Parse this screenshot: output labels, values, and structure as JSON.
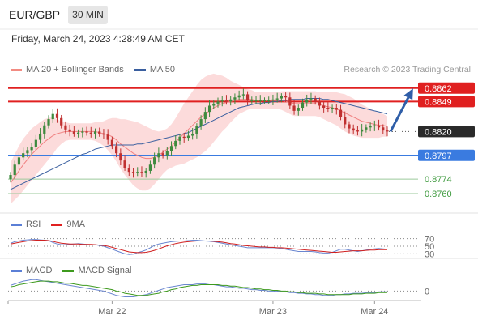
{
  "header": {
    "pair": "EUR/GBP",
    "timeframe": "30 MIN"
  },
  "date": "Friday, March 24, 2023 4:28:49 AM CET",
  "credit": "Research © 2023 Trading Central",
  "colors": {
    "resistance": "#e02020",
    "support_blue": "#3a7be0",
    "support_green": "#3e9a3e",
    "current": "#2a2a2a",
    "ma20": "#f08080",
    "ma50": "#3a5f9f",
    "band": "#fbd5d5",
    "candle_up": "#3e8a3e",
    "candle_down": "#c03030",
    "rsi": "#6a86d0",
    "rsi_ma": "#d02020",
    "macd": "#6a86d0",
    "macd_signal": "#3e9a1e"
  },
  "legends": {
    "main": [
      {
        "label": "MA 20 + Bollinger Bands",
        "color": "#f28b82"
      },
      {
        "label": "MA 50",
        "color": "#3a5f9f"
      }
    ],
    "rsi": [
      {
        "label": "RSI",
        "color": "#5b7fd6"
      },
      {
        "label": "9MA",
        "color": "#e02020"
      }
    ],
    "macd": [
      {
        "label": "MACD",
        "color": "#5b7fd6"
      },
      {
        "label": "MACD Signal",
        "color": "#3e9a1e"
      }
    ]
  },
  "chart_data": {
    "type": "candlestick",
    "ylim": [
      0.8742,
      0.8872
    ],
    "x_ticks": [
      "Mar 22",
      "Mar 23",
      "Mar 24"
    ],
    "levels": [
      {
        "value": 0.8862,
        "label": "0.8862",
        "kind": "resistance"
      },
      {
        "value": 0.8849,
        "label": "0.8849",
        "kind": "resistance"
      },
      {
        "value": 0.882,
        "label": "0.8820",
        "kind": "current"
      },
      {
        "value": 0.8797,
        "label": "0.8797",
        "kind": "support"
      },
      {
        "value": 0.8774,
        "label": "0.8774",
        "kind": "support_minor"
      },
      {
        "value": 0.876,
        "label": "0.8760",
        "kind": "support_minor"
      }
    ],
    "close": [
      0.8778,
      0.8788,
      0.8795,
      0.8799,
      0.8802,
      0.8805,
      0.8812,
      0.8818,
      0.8826,
      0.8832,
      0.8837,
      0.8833,
      0.8826,
      0.8822,
      0.882,
      0.8818,
      0.8819,
      0.882,
      0.8819,
      0.8818,
      0.882,
      0.8818,
      0.8817,
      0.8812,
      0.8806,
      0.8799,
      0.8792,
      0.8785,
      0.8781,
      0.878,
      0.8781,
      0.878,
      0.8782,
      0.8788,
      0.8795,
      0.8799,
      0.8797,
      0.8801,
      0.8806,
      0.8811,
      0.8815,
      0.8814,
      0.8816,
      0.8818,
      0.8825,
      0.8832,
      0.8839,
      0.8845,
      0.8847,
      0.8849,
      0.885,
      0.8849,
      0.8851,
      0.8853,
      0.8855,
      0.8856,
      0.885,
      0.885,
      0.885,
      0.885,
      0.885,
      0.885,
      0.8851,
      0.8852,
      0.8854,
      0.8853,
      0.8845,
      0.884,
      0.8843,
      0.8848,
      0.8851,
      0.8852,
      0.8849,
      0.8845,
      0.8843,
      0.8842,
      0.8843,
      0.8841,
      0.8834,
      0.8827,
      0.8823,
      0.8821,
      0.882,
      0.8822,
      0.8824,
      0.8825,
      0.8826,
      0.8824,
      0.8821,
      0.882
    ],
    "ma20": [
      0.877,
      0.8776,
      0.8782,
      0.8788,
      0.8793,
      0.8798,
      0.8802,
      0.8806,
      0.881,
      0.8813,
      0.8816,
      0.8818,
      0.8819,
      0.882,
      0.882,
      0.882,
      0.882,
      0.882,
      0.882,
      0.882,
      0.882,
      0.8819,
      0.8818,
      0.8817,
      0.8815,
      0.8812,
      0.8808,
      0.8805,
      0.8802,
      0.8799,
      0.8797,
      0.8795,
      0.8794,
      0.8794,
      0.8795,
      0.8797,
      0.88,
      0.8803,
      0.8806,
      0.881,
      0.8814,
      0.8818,
      0.8822,
      0.8826,
      0.883,
      0.8834,
      0.8837,
      0.884,
      0.8843,
      0.8845,
      0.8847,
      0.8848,
      0.8849,
      0.885,
      0.8851,
      0.8851,
      0.8851,
      0.8851,
      0.885,
      0.885,
      0.885,
      0.885,
      0.885,
      0.885,
      0.885,
      0.8849,
      0.8848,
      0.8847,
      0.8847,
      0.8847,
      0.8847,
      0.8847,
      0.8847,
      0.8846,
      0.8845,
      0.8844,
      0.8843,
      0.8842,
      0.884,
      0.8838,
      0.8836,
      0.8834,
      0.8832,
      0.883,
      0.8829,
      0.8828,
      0.8827,
      0.8826,
      0.8826,
      0.8825
    ],
    "ma50": [
      0.8764,
      0.8766,
      0.8768,
      0.877,
      0.8772,
      0.8774,
      0.8776,
      0.8778,
      0.878,
      0.8782,
      0.8784,
      0.8786,
      0.8788,
      0.879,
      0.8792,
      0.8794,
      0.8796,
      0.8798,
      0.8799,
      0.8801,
      0.8803,
      0.8804,
      0.8805,
      0.8806,
      0.8807,
      0.8807,
      0.8807,
      0.8807,
      0.8807,
      0.8807,
      0.8808,
      0.8808,
      0.8809,
      0.881,
      0.8811,
      0.8812,
      0.8813,
      0.8814,
      0.8815,
      0.8816,
      0.8817,
      0.8818,
      0.8819,
      0.8821,
      0.8823,
      0.8825,
      0.8827,
      0.8829,
      0.8831,
      0.8833,
      0.8835,
      0.8837,
      0.8839,
      0.8841,
      0.8843,
      0.8844,
      0.8845,
      0.8846,
      0.8847,
      0.8847,
      0.8848,
      0.8848,
      0.8849,
      0.8849,
      0.885,
      0.885,
      0.8851,
      0.8851,
      0.8851,
      0.8851,
      0.8852,
      0.8852,
      0.8852,
      0.8852,
      0.8851,
      0.8851,
      0.885,
      0.8849,
      0.8848,
      0.8847,
      0.8846,
      0.8845,
      0.8844,
      0.8843,
      0.8842,
      0.8841,
      0.884,
      0.8839,
      0.8838,
      0.8837
    ],
    "band_halfwidth": [
      0.002,
      0.0022,
      0.0024,
      0.0025,
      0.0025,
      0.0025,
      0.0024,
      0.0023,
      0.0022,
      0.002,
      0.0018,
      0.0014,
      0.0011,
      0.0009,
      0.0008,
      0.0008,
      0.0008,
      0.0008,
      0.0008,
      0.0008,
      0.0009,
      0.001,
      0.0012,
      0.0015,
      0.0018,
      0.0021,
      0.0024,
      0.0027,
      0.0029,
      0.0031,
      0.0032,
      0.0032,
      0.0031,
      0.0029,
      0.0026,
      0.0023,
      0.0021,
      0.002,
      0.0021,
      0.0023,
      0.0026,
      0.0029,
      0.0031,
      0.0033,
      0.0035,
      0.0036,
      0.0036,
      0.0035,
      0.0033,
      0.003,
      0.0027,
      0.0024,
      0.002,
      0.0017,
      0.0014,
      0.0012,
      0.001,
      0.0009,
      0.0008,
      0.0008,
      0.0008,
      0.0008,
      0.0008,
      0.0008,
      0.0009,
      0.001,
      0.0011,
      0.0012,
      0.0012,
      0.0012,
      0.0012,
      0.0012,
      0.0012,
      0.0012,
      0.0013,
      0.0014,
      0.0015,
      0.0016,
      0.0017,
      0.0018,
      0.0018,
      0.0018,
      0.0017,
      0.0016,
      0.0015,
      0.0014,
      0.0013,
      0.0012,
      0.0011,
      0.001
    ],
    "rsi": {
      "levels": [
        70,
        50,
        30
      ],
      "ylim": [
        20,
        80
      ],
      "rsi": [
        58,
        62,
        64,
        66,
        67,
        68,
        68,
        67,
        66,
        65,
        60,
        56,
        54,
        54,
        55,
        56,
        57,
        56,
        55,
        54,
        54,
        52,
        50,
        46,
        42,
        38,
        34,
        30,
        28,
        29,
        33,
        36,
        40,
        46,
        52,
        56,
        58,
        60,
        62,
        63,
        64,
        64,
        65,
        66,
        66,
        65,
        64,
        63,
        62,
        60,
        58,
        56,
        54,
        52,
        50,
        48,
        46,
        46,
        46,
        46,
        46,
        46,
        46,
        45,
        44,
        42,
        40,
        38,
        36,
        36,
        36,
        36,
        35,
        33,
        32,
        32,
        34,
        38,
        42,
        42,
        40,
        38,
        36,
        38,
        40,
        42,
        43,
        44,
        43,
        42
      ],
      "ma9": [
        56,
        58,
        60,
        62,
        64,
        65,
        66,
        66,
        66,
        65,
        63,
        60,
        58,
        57,
        56,
        56,
        56,
        55,
        55,
        55,
        54,
        53,
        52,
        50,
        47,
        44,
        41,
        38,
        35,
        34,
        33,
        33,
        34,
        36,
        39,
        43,
        47,
        51,
        54,
        57,
        59,
        61,
        62,
        63,
        64,
        64,
        64,
        64,
        63,
        62,
        61,
        59,
        57,
        56,
        54,
        52,
        51,
        50,
        49,
        48,
        48,
        47,
        47,
        46,
        46,
        45,
        44,
        43,
        42,
        41,
        40,
        39,
        38,
        37,
        36,
        35,
        34,
        34,
        35,
        36,
        37,
        38,
        38,
        38,
        39,
        40,
        40,
        41,
        41,
        41
      ]
    },
    "macd": {
      "zero_label": "0",
      "ylim": [
        -0.0012,
        0.0022
      ],
      "macd": [
        0.0008,
        0.001,
        0.0012,
        0.0014,
        0.0015,
        0.0016,
        0.0016,
        0.0015,
        0.0014,
        0.0013,
        0.0012,
        0.0011,
        0.001,
        0.0009,
        0.0008,
        0.0007,
        0.0006,
        0.0005,
        0.0004,
        0.0003,
        0.0002,
        0.0001,
        0.0,
        -0.0002,
        -0.0004,
        -0.0006,
        -0.0007,
        -0.0008,
        -0.0008,
        -0.0008,
        -0.0007,
        -0.0006,
        -0.0005,
        -0.0003,
        -0.0001,
        0.0001,
        0.0003,
        0.0005,
        0.0006,
        0.0007,
        0.0008,
        0.0009,
        0.0009,
        0.0009,
        0.001,
        0.001,
        0.001,
        0.0009,
        0.0009,
        0.0008,
        0.0007,
        0.0006,
        0.0006,
        0.0005,
        0.0004,
        0.0004,
        0.0003,
        0.0002,
        0.0002,
        0.0001,
        0.0001,
        0.0,
        0.0,
        0.0,
        -0.0001,
        -0.0001,
        -0.0002,
        -0.0002,
        -0.0003,
        -0.0003,
        -0.0004,
        -0.0004,
        -0.0005,
        -0.0005,
        -0.0006,
        -0.0006,
        -0.0006,
        -0.0005,
        -0.0005,
        -0.0004,
        -0.0004,
        -0.0003,
        -0.0003,
        -0.0003,
        -0.0002,
        -0.0002,
        -0.0002,
        -0.0001,
        -0.0001,
        -0.0001
      ],
      "signal": [
        0.0006,
        0.0007,
        0.0009,
        0.001,
        0.0011,
        0.0012,
        0.0013,
        0.0014,
        0.0014,
        0.0014,
        0.0013,
        0.0013,
        0.0012,
        0.0011,
        0.0011,
        0.001,
        0.0009,
        0.0008,
        0.0008,
        0.0007,
        0.0006,
        0.0005,
        0.0004,
        0.0003,
        0.0002,
        0.0,
        -0.0001,
        -0.0003,
        -0.0004,
        -0.0005,
        -0.0006,
        -0.0006,
        -0.0006,
        -0.0005,
        -0.0004,
        -0.0003,
        -0.0001,
        0.0,
        0.0002,
        0.0003,
        0.0005,
        0.0006,
        0.0007,
        0.0008,
        0.0008,
        0.0009,
        0.0009,
        0.0009,
        0.0009,
        0.0009,
        0.0008,
        0.0008,
        0.0007,
        0.0007,
        0.0006,
        0.0005,
        0.0005,
        0.0004,
        0.0003,
        0.0003,
        0.0002,
        0.0002,
        0.0001,
        0.0001,
        0.0,
        0.0,
        -0.0001,
        -0.0001,
        -0.0002,
        -0.0002,
        -0.0003,
        -0.0003,
        -0.0003,
        -0.0004,
        -0.0004,
        -0.0005,
        -0.0005,
        -0.0005,
        -0.0005,
        -0.0005,
        -0.0005,
        -0.0004,
        -0.0004,
        -0.0004,
        -0.0003,
        -0.0003,
        -0.0003,
        -0.0002,
        -0.0002,
        -0.0002
      ]
    }
  }
}
